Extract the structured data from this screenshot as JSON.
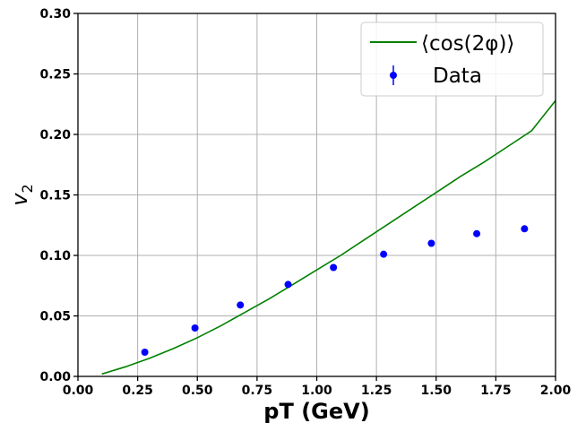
{
  "chart_data": {
    "type": "scatter",
    "xlabel": "pT (GeV)",
    "ylabel": "v",
    "ylabel_subscript": "2",
    "xlim": [
      0.0,
      2.0
    ],
    "ylim": [
      0.0,
      0.3
    ],
    "x_ticks": [
      "0.00",
      "0.25",
      "0.50",
      "0.75",
      "1.00",
      "1.25",
      "1.50",
      "1.75",
      "2.00"
    ],
    "y_ticks": [
      "0.00",
      "0.05",
      "0.10",
      "0.15",
      "0.20",
      "0.25",
      "0.30"
    ],
    "grid": true,
    "legend_position": "top-right",
    "series": [
      {
        "name": "⟨cos(2φ)⟩",
        "kind": "line",
        "color": "#008000",
        "x": [
          0.1,
          0.2,
          0.3,
          0.4,
          0.5,
          0.6,
          0.7,
          0.8,
          0.9,
          1.0,
          1.1,
          1.2,
          1.3,
          1.4,
          1.5,
          1.6,
          1.7,
          1.8,
          1.9,
          2.0
        ],
        "y": [
          0.002,
          0.008,
          0.015,
          0.023,
          0.032,
          0.042,
          0.053,
          0.064,
          0.076,
          0.088,
          0.1,
          0.113,
          0.126,
          0.139,
          0.152,
          0.165,
          0.177,
          0.19,
          0.203,
          0.228
        ]
      },
      {
        "name": "Data",
        "kind": "points",
        "color": "#0000ff",
        "x": [
          0.28,
          0.49,
          0.68,
          0.88,
          1.07,
          1.28,
          1.48,
          1.67,
          1.87
        ],
        "y": [
          0.02,
          0.04,
          0.059,
          0.076,
          0.09,
          0.101,
          0.11,
          0.118,
          0.122
        ]
      }
    ]
  }
}
